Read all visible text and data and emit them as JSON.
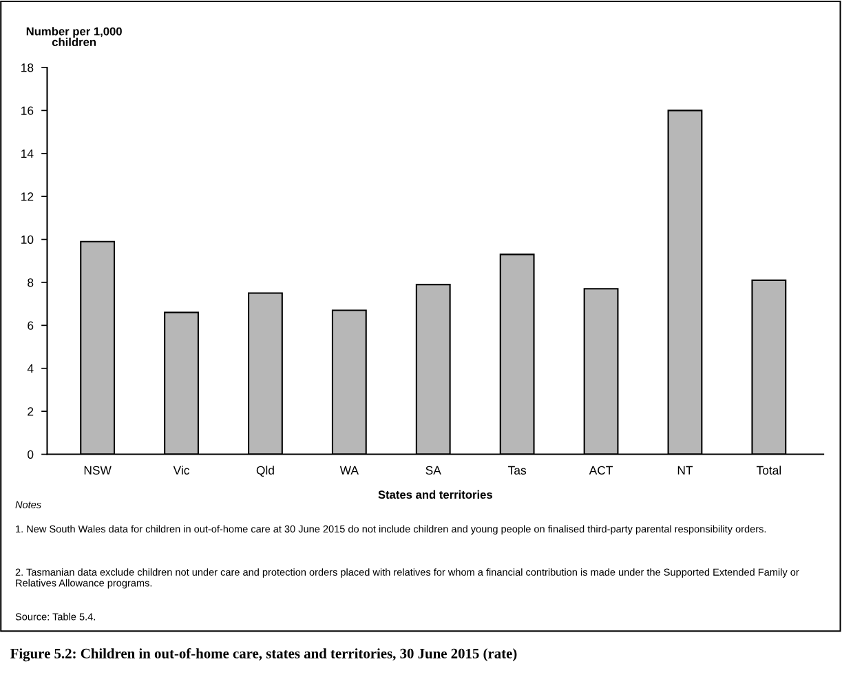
{
  "chart_data": {
    "type": "bar",
    "title": "Figure 5.2: Children in out-of-home care, states and territories, 30 June 2015 (rate)",
    "xlabel": "States and territories",
    "ylabel": "Number per 1,000\nchildren",
    "categories": [
      "NSW",
      "Vic",
      "Qld",
      "WA",
      "SA",
      "Tas",
      "ACT",
      "NT",
      "Total"
    ],
    "values": [
      9.9,
      6.6,
      7.5,
      6.7,
      7.9,
      9.3,
      7.7,
      16.0,
      8.1
    ],
    "color": "#b7b7b7",
    "ylim": [
      0,
      18
    ],
    "yticks": [
      0,
      2,
      4,
      6,
      8,
      10,
      12,
      14,
      16,
      18
    ],
    "grid": false,
    "annotations": [
      "Notes",
      "1. New South Wales data for children in out-of-home care at 30 June 2015 do not include children and young people on finalised third-party parental responsibility orders.",
      "2. Tasmanian data exclude children not under care and protection orders placed with relatives for whom a financial contribution is made under the Supported Extended Family or Relatives Allowance programs.",
      "Source: Table 5.4."
    ]
  }
}
